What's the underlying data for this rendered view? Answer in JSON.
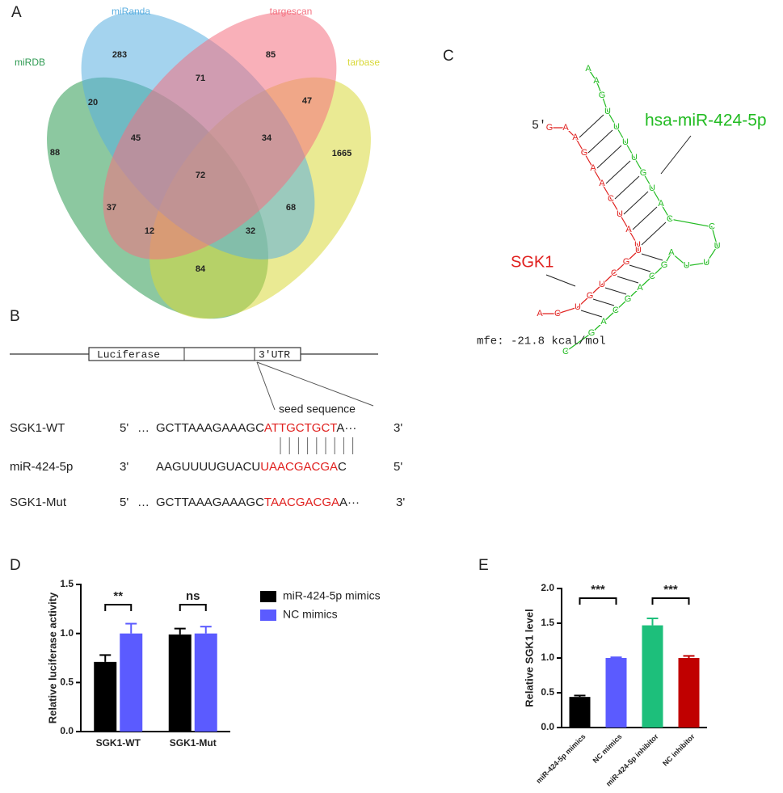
{
  "panel_labels": [
    "A",
    "B",
    "C",
    "D",
    "E"
  ],
  "venn": {
    "sets": [
      {
        "name": "miRanda",
        "color": "#5aaee0"
      },
      {
        "name": "targescan",
        "color": "#f4707f"
      },
      {
        "name": "miRDB",
        "color": "#2e9a52"
      },
      {
        "name": "tarbase",
        "color": "#d9d93a"
      }
    ],
    "regions": [
      283,
      85,
      20,
      71,
      47,
      88,
      45,
      34,
      1665,
      72,
      37,
      12,
      68,
      32,
      84
    ]
  },
  "construct": {
    "luciferase": "Luciferase",
    "utr": "3'UTR",
    "seed_label": "seed sequence",
    "rows": [
      {
        "name": "SGK1-WT",
        "left": "5'",
        "dots": "…",
        "seq": "GCTTAAAGAAAGC",
        "seed": "ATTGCTGCT",
        "tail": "A···",
        "right": "3'"
      },
      {
        "name": "miR-424-5p",
        "left": "3'",
        "dots": "",
        "seq": "AAGUUUUGUACU",
        "seed": "UAACGACGA",
        "tail": "C",
        "right": "5'"
      },
      {
        "name": "SGK1-Mut",
        "left": "5'",
        "dots": "…",
        "seq": "GCTTAAAGAAAGC",
        "seed": "TAACGACGA",
        "tail": "A···",
        "right": "3'"
      }
    ]
  },
  "structure": {
    "five_prime": "5′",
    "mirna_name": "hsa-miR-424-5p",
    "target_name": "SGK1",
    "mfe": "mfe: -21.8 kcal/mol",
    "mirna": [
      "A",
      "A",
      "G",
      "U",
      "U",
      "U",
      "U",
      "G",
      "U",
      "A",
      "C",
      "C",
      "U",
      "U",
      "U",
      "A",
      "G",
      "C",
      "A",
      "G",
      "C",
      "A",
      "G",
      "C"
    ],
    "target": [
      "G",
      "A",
      "A",
      "G",
      "A",
      "A",
      "C",
      "U",
      "A",
      "U",
      "U",
      "G",
      "C",
      "U",
      "G",
      "U",
      "C",
      "A"
    ]
  },
  "chart_data": [
    {
      "type": "bar",
      "ylabel": "Relative luciferase activity",
      "categories": [
        "SGK1-WT",
        "SGK1-Mut"
      ],
      "series": [
        {
          "name": "miR-424-5p mimics",
          "color": "#000000",
          "values": [
            0.71,
            0.99
          ],
          "errors": [
            0.07,
            0.06
          ]
        },
        {
          "name": "NC mimics",
          "color": "#5b5bff",
          "values": [
            1.0,
            1.0
          ],
          "errors": [
            0.1,
            0.07
          ]
        }
      ],
      "ylim": [
        0,
        1.5
      ],
      "yticks": [
        {
          "value": 0,
          "label": "0.0"
        },
        {
          "value": 0.5,
          "label": "0.5"
        },
        {
          "value": 1,
          "label": "1.0"
        },
        {
          "value": 1.5,
          "label": "1.5"
        }
      ],
      "annotations": [
        "**",
        "ns"
      ]
    },
    {
      "type": "bar",
      "ylabel": "Relative SGK1 level",
      "categories": [
        "miR-424-5p mimics",
        "NC mimics",
        "miR-424-5p inhibitor",
        "NC inhibitor"
      ],
      "values": [
        0.44,
        1.0,
        1.47,
        1.0
      ],
      "errors": [
        0.02,
        0.01,
        0.1,
        0.03
      ],
      "colors": [
        "#000000",
        "#5b5bff",
        "#1dbf7b",
        "#c00000"
      ],
      "ylim": [
        0,
        2
      ],
      "yticks": [
        {
          "value": 0,
          "label": "0.0"
        },
        {
          "value": 0.5,
          "label": "0.5"
        },
        {
          "value": 1,
          "label": "1.0"
        },
        {
          "value": 1.5,
          "label": "1.5"
        },
        {
          "value": 2,
          "label": "2.0"
        }
      ],
      "annotations": [
        "***",
        "***"
      ]
    }
  ]
}
